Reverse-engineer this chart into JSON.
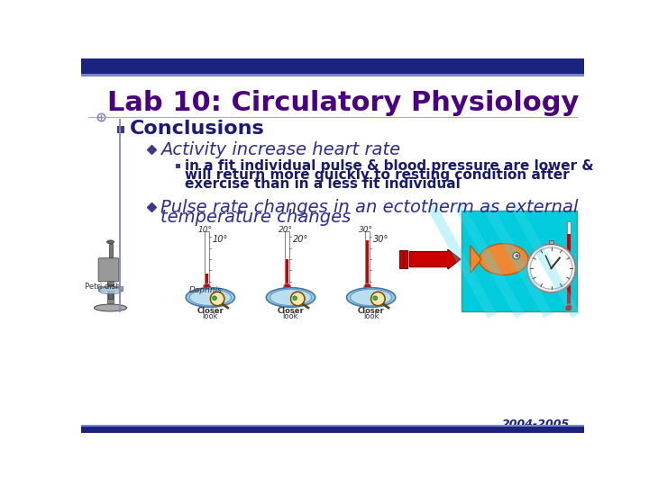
{
  "title": "Lab 10: Circulatory Physiology",
  "title_color": "#4B0080",
  "title_fontsize": 22,
  "bg_color": "#ffffff",
  "top_bar_color": "#1a237e",
  "top_bar2_color": "#7986cb",
  "bottom_bar_color": "#1a237e",
  "section_text": "Conclusions",
  "section_color": "#1a1a7a",
  "section_fontsize": 16,
  "bullet1_text": "Activity increase heart rate",
  "bullet1_color": "#2d2d8a",
  "bullet1_fontsize": 14,
  "sub_bullet_line1": "in a fit individual pulse & blood pressure are lower &",
  "sub_bullet_line2": "will return more quickly to resting condition after",
  "sub_bullet_line3": "exercise than in a less fit individual",
  "sub_bullet_color": "#1a1a6a",
  "sub_bullet_fontsize": 11,
  "sub_sq_color": "#3a3a9a",
  "bullet2_line1": "Pulse rate changes in an ectotherm as external",
  "bullet2_line2": "temperature changes",
  "bullet2_color": "#2d2d8a",
  "bullet2_fontsize": 14,
  "year_text": "2004-2005",
  "year_color": "#1a237e",
  "year_fontsize": 9,
  "line_color": "#8888bb",
  "section_sq_color": "#3a3a8a",
  "diamond_color": "#3a3a8a",
  "title_underline_color": "#aaaacc",
  "vert_line_color": "#8888bb"
}
